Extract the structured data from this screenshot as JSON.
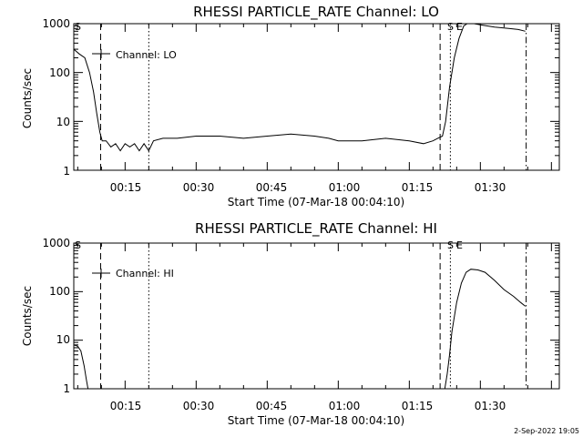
{
  "timestamp": "2-Sep-2022 19:05",
  "chart_data": [
    {
      "type": "line",
      "title": "RHESSI PARTICLE_RATE Channel: LO",
      "xlabel": "Start Time (07-Mar-18 00:04:10)",
      "ylabel": "Counts/sec",
      "yscale": "log",
      "xlim": [
        "00:04:10",
        "01:46:40"
      ],
      "ylim": [
        1,
        1000
      ],
      "x_ticks": [
        "00:15",
        "00:30",
        "00:45",
        "01:00",
        "01:15",
        "01:30"
      ],
      "y_ticks": [
        "1",
        "10",
        "100",
        "1000"
      ],
      "grid": false,
      "legend": {
        "position": "top-left",
        "entries": [
          "Channel: LO"
        ]
      },
      "annotations": [
        "S",
        "S",
        "E"
      ],
      "vertical_markers": [
        {
          "style": "dashed",
          "x": "00:09:50"
        },
        {
          "style": "dotted",
          "x": "00:20:00"
        },
        {
          "style": "dashed",
          "x": "01:21:30"
        },
        {
          "style": "dotted",
          "x": "01:23:40"
        },
        {
          "style": "dashdot",
          "x": "01:39:40"
        }
      ],
      "series": [
        {
          "name": "Channel: LO",
          "points": [
            [
              "00:04:10",
              300
            ],
            [
              "00:05:20",
              240
            ],
            [
              "00:06:30",
              200
            ],
            [
              "00:07:30",
              100
            ],
            [
              "00:08:20",
              40
            ],
            [
              "00:09:00",
              15
            ],
            [
              "00:09:40",
              6
            ],
            [
              "00:10:10",
              4
            ],
            [
              "00:11:00",
              4
            ],
            [
              "00:12:00",
              3
            ],
            [
              "00:13:00",
              3.5
            ],
            [
              "00:14:00",
              2.5
            ],
            [
              "00:15:00",
              3.5
            ],
            [
              "00:16:00",
              3
            ],
            [
              "00:17:00",
              3.5
            ],
            [
              "00:18:00",
              2.5
            ],
            [
              "00:19:00",
              3.5
            ],
            [
              "00:20:00",
              2.5
            ],
            [
              "00:21:00",
              4
            ],
            [
              "00:23:00",
              4.5
            ],
            [
              "00:26:00",
              4.5
            ],
            [
              "00:30:00",
              5
            ],
            [
              "00:35:00",
              5
            ],
            [
              "00:40:00",
              4.5
            ],
            [
              "00:45:00",
              5
            ],
            [
              "00:50:00",
              5.5
            ],
            [
              "00:55:00",
              5
            ],
            [
              "00:58:00",
              4.5
            ],
            [
              "01:00:00",
              4
            ],
            [
              "01:05:00",
              4
            ],
            [
              "01:10:00",
              4.5
            ],
            [
              "01:15:00",
              4
            ],
            [
              "01:18:00",
              3.5
            ],
            [
              "01:20:00",
              4
            ],
            [
              "01:21:00",
              4.5
            ],
            [
              "01:22:00",
              5
            ],
            [
              "01:22:40",
              10
            ],
            [
              "01:23:30",
              50
            ],
            [
              "01:24:30",
              200
            ],
            [
              "01:25:30",
              500
            ],
            [
              "01:26:30",
              900
            ],
            [
              "01:27:30",
              1050
            ],
            [
              "01:30:00",
              950
            ],
            [
              "01:33:00",
              850
            ],
            [
              "01:36:00",
              800
            ],
            [
              "01:38:00",
              760
            ],
            [
              "01:39:30",
              700
            ]
          ]
        }
      ]
    },
    {
      "type": "line",
      "title": "RHESSI PARTICLE_RATE Channel: HI",
      "xlabel": "Start Time (07-Mar-18 00:04:10)",
      "ylabel": "Counts/sec",
      "yscale": "log",
      "xlim": [
        "00:04:10",
        "01:46:40"
      ],
      "ylim": [
        1,
        1000
      ],
      "x_ticks": [
        "00:15",
        "00:30",
        "00:45",
        "01:00",
        "01:15",
        "01:30"
      ],
      "y_ticks": [
        "1",
        "10",
        "100",
        "1000"
      ],
      "grid": false,
      "legend": {
        "position": "top-left",
        "entries": [
          "Channel: HI"
        ]
      },
      "annotations": [
        "S",
        "S",
        "E"
      ],
      "vertical_markers": [
        {
          "style": "dashed",
          "x": "00:09:50"
        },
        {
          "style": "dotted",
          "x": "00:20:00"
        },
        {
          "style": "dashed",
          "x": "01:21:30"
        },
        {
          "style": "dotted",
          "x": "01:23:40"
        },
        {
          "style": "dashdot",
          "x": "01:39:40"
        }
      ],
      "series": [
        {
          "name": "Channel: HI",
          "points": [
            [
              "00:04:10",
              8
            ],
            [
              "00:05:00",
              7.5
            ],
            [
              "00:05:40",
              6
            ],
            [
              "00:06:20",
              3
            ],
            [
              "00:06:50",
              1.5
            ],
            [
              "00:07:10",
              1
            ],
            [
              "01:22:30",
              1
            ],
            [
              "01:23:00",
              2
            ],
            [
              "01:23:30",
              5
            ],
            [
              "01:24:00",
              15
            ],
            [
              "01:25:00",
              60
            ],
            [
              "01:26:00",
              150
            ],
            [
              "01:27:00",
              250
            ],
            [
              "01:28:00",
              290
            ],
            [
              "01:29:30",
              280
            ],
            [
              "01:31:00",
              250
            ],
            [
              "01:33:00",
              170
            ],
            [
              "01:35:00",
              110
            ],
            [
              "01:37:00",
              80
            ],
            [
              "01:38:30",
              60
            ],
            [
              "01:39:30",
              50
            ]
          ]
        }
      ]
    }
  ]
}
